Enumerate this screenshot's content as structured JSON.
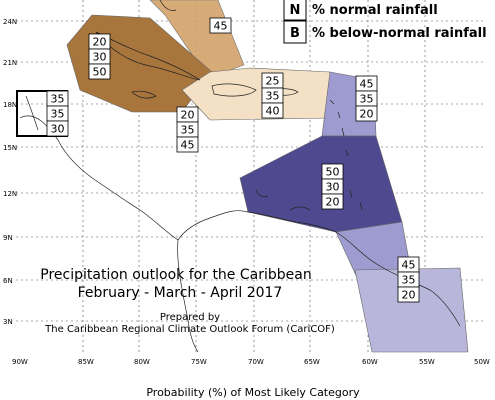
{
  "map": {
    "title_line1": "Precipitation outlook for the Caribbean",
    "title_line2": "February - March - April 2017",
    "prepared_by": "Prepared by",
    "forum": "The Caribbean Regional Climate Outlook Forum (CariCOF)",
    "footer": "Probability (%) of Most Likely Category"
  },
  "legend": {
    "items": [
      {
        "key": "N",
        "label": "% normal rainfall"
      },
      {
        "key": "B",
        "label": "% below-normal rainfall"
      }
    ]
  },
  "axes": {
    "lat_ticks": [
      "3N",
      "6N",
      "9N",
      "12N",
      "15N",
      "18N",
      "21N",
      "24N"
    ],
    "lon_ticks": [
      "90W",
      "85W",
      "80W",
      "75W",
      "70W",
      "65W",
      "60W",
      "55W",
      "50W"
    ]
  },
  "colors": {
    "above_orange_dark": "#a8763d",
    "above_orange_mid": "#d3a36a",
    "light_peach": "#f4e0c4",
    "purple_dark": "#4f4a90",
    "purple_mid": "#6b68a8",
    "purple_light": "#9d9bd0",
    "purple_pale": "#b9b6dc"
  },
  "regions": [
    {
      "id": "bahamas",
      "probs": [
        "",
        "",
        "45"
      ]
    },
    {
      "id": "cuba",
      "probs": [
        "20",
        "30",
        "50"
      ]
    },
    {
      "id": "greater-antilles",
      "probs": [
        "25",
        "35",
        "40"
      ]
    },
    {
      "id": "belize",
      "probs": [
        "35",
        "35",
        "30"
      ]
    },
    {
      "id": "jamaica",
      "probs": [
        "20",
        "35",
        "45"
      ]
    },
    {
      "id": "leeward",
      "probs": [
        "45",
        "35",
        "20"
      ]
    },
    {
      "id": "windward",
      "probs": [
        "50",
        "30",
        "20"
      ]
    },
    {
      "id": "guianas",
      "probs": [
        "45",
        "35",
        "20"
      ]
    }
  ]
}
